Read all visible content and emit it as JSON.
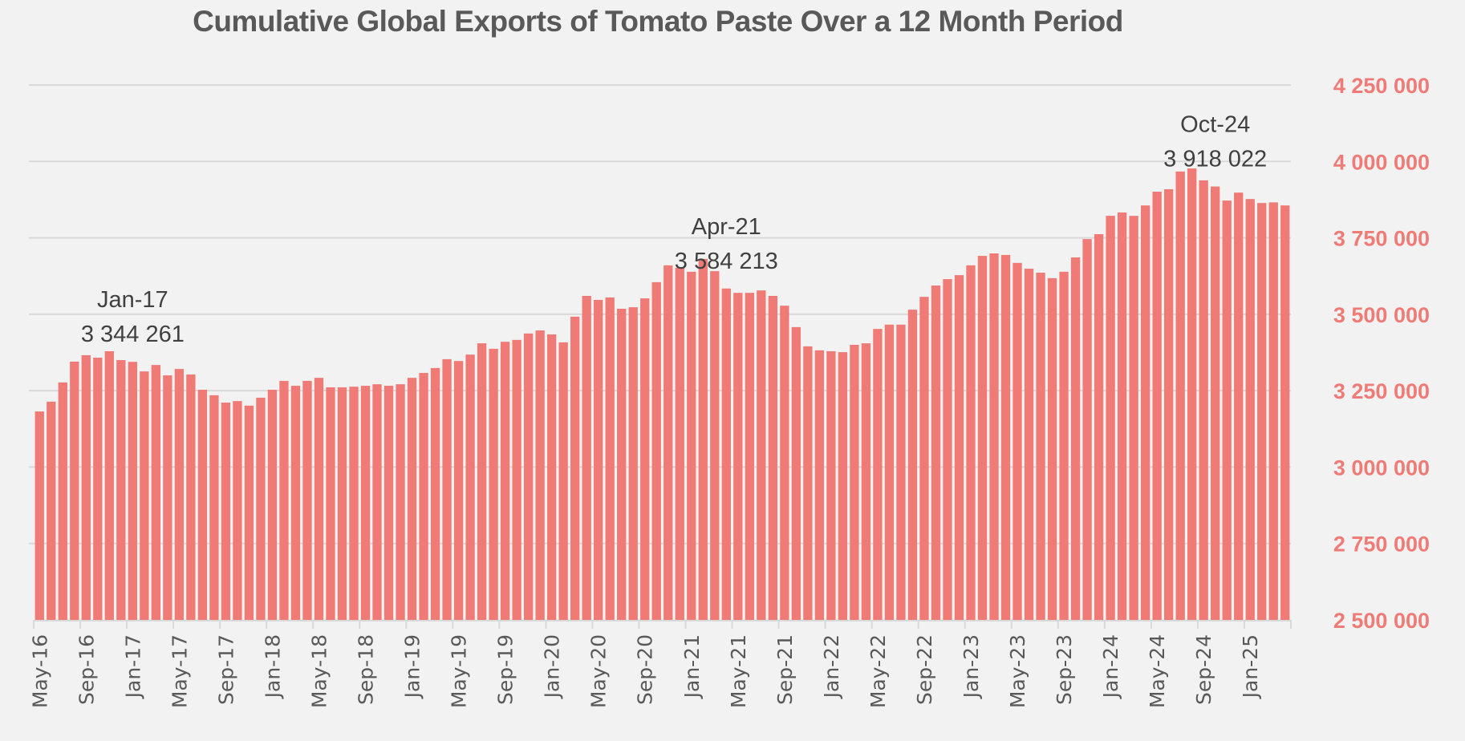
{
  "chart_data": {
    "type": "bar",
    "title": "Cumulative Global Exports of Tomato Paste Over a 12 Month Period",
    "xlabel": "",
    "ylabel": "",
    "ylim": [
      2500000,
      4250000
    ],
    "y_axis_side": "right",
    "y_ticks": [
      2500000,
      2750000,
      3000000,
      3250000,
      3500000,
      3750000,
      4000000,
      4250000
    ],
    "y_tick_labels": [
      "2 500 000",
      "2 750 000",
      "3 000 000",
      "3 250 000",
      "3 500 000",
      "3 750 000",
      "4 000 000",
      "4 250 000"
    ],
    "grid": true,
    "legend": "none",
    "bar_color": "#F07B76",
    "x_tick_labels": [
      "May-16",
      "Sep-16",
      "Jan-17",
      "May-17",
      "Sep-17",
      "Jan-18",
      "May-18",
      "Sep-18",
      "Jan-19",
      "May-19",
      "Sep-19",
      "Jan-20",
      "May-20",
      "Sep-20",
      "Jan-21",
      "May-21",
      "Sep-21",
      "Jan-22",
      "May-22",
      "Sep-22",
      "Jan-23",
      "May-23",
      "Sep-23",
      "Jan-24",
      "May-24",
      "Sep-24",
      "Jan-25"
    ],
    "categories": [
      "May-16",
      "Jun-16",
      "Jul-16",
      "Aug-16",
      "Sep-16",
      "Oct-16",
      "Nov-16",
      "Dec-16",
      "Jan-17",
      "Feb-17",
      "Mar-17",
      "Apr-17",
      "May-17",
      "Jun-17",
      "Jul-17",
      "Aug-17",
      "Sep-17",
      "Oct-17",
      "Nov-17",
      "Dec-17",
      "Jan-18",
      "Feb-18",
      "Mar-18",
      "Apr-18",
      "May-18",
      "Jun-18",
      "Jul-18",
      "Aug-18",
      "Sep-18",
      "Oct-18",
      "Nov-18",
      "Dec-18",
      "Jan-19",
      "Feb-19",
      "Mar-19",
      "Apr-19",
      "May-19",
      "Jun-19",
      "Jul-19",
      "Aug-19",
      "Sep-19",
      "Oct-19",
      "Nov-19",
      "Dec-19",
      "Jan-20",
      "Feb-20",
      "Mar-20",
      "Apr-20",
      "May-20",
      "Jun-20",
      "Jul-20",
      "Aug-20",
      "Sep-20",
      "Oct-20",
      "Nov-20",
      "Dec-20",
      "Jan-21",
      "Feb-21",
      "Mar-21",
      "Apr-21",
      "May-21",
      "Jun-21",
      "Jul-21",
      "Aug-21",
      "Sep-21",
      "Oct-21",
      "Nov-21",
      "Dec-21",
      "Jan-22",
      "Feb-22",
      "Mar-22",
      "Apr-22",
      "May-22",
      "Jun-22",
      "Jul-22",
      "Aug-22",
      "Sep-22",
      "Oct-22",
      "Nov-22",
      "Dec-22",
      "Jan-23",
      "Feb-23",
      "Mar-23",
      "Apr-23",
      "May-23",
      "Jun-23",
      "Jul-23",
      "Aug-23",
      "Sep-23",
      "Oct-23",
      "Nov-23",
      "Dec-23",
      "Jan-24",
      "Feb-24",
      "Mar-24",
      "Apr-24",
      "May-24",
      "Jun-24",
      "Jul-24",
      "Aug-24",
      "Sep-24",
      "Oct-24",
      "Nov-24",
      "Dec-24",
      "Jan-25",
      "Feb-25",
      "Mar-25",
      "Apr-25"
    ],
    "values": [
      3182000,
      3214000,
      3277000,
      3345000,
      3366000,
      3358000,
      3379000,
      3350000,
      3344261,
      3313000,
      3334000,
      3300000,
      3321000,
      3303000,
      3253000,
      3235000,
      3211000,
      3216000,
      3201000,
      3227000,
      3253000,
      3282000,
      3266000,
      3282000,
      3292000,
      3261000,
      3261000,
      3263000,
      3266000,
      3271000,
      3266000,
      3271000,
      3292000,
      3308000,
      3324000,
      3353000,
      3347000,
      3368000,
      3405000,
      3387000,
      3410000,
      3416000,
      3437000,
      3447000,
      3434000,
      3408000,
      3492000,
      3560000,
      3547000,
      3555000,
      3518000,
      3523000,
      3552000,
      3605000,
      3660000,
      3652000,
      3639000,
      3681000,
      3641000,
      3584213,
      3570000,
      3570000,
      3578000,
      3560000,
      3528000,
      3458000,
      3395000,
      3382000,
      3379000,
      3376000,
      3400000,
      3405000,
      3452000,
      3466000,
      3466000,
      3515000,
      3557000,
      3594000,
      3615000,
      3628000,
      3660000,
      3691000,
      3699000,
      3694000,
      3668000,
      3649000,
      3636000,
      3618000,
      3639000,
      3686000,
      3746000,
      3762000,
      3822000,
      3833000,
      3822000,
      3856000,
      3901000,
      3909000,
      3967000,
      3977000,
      3938000,
      3918022,
      3872000,
      3898000,
      3877000,
      3864000,
      3866000,
      3856000
    ],
    "annotations": [
      {
        "category": "Jan-17",
        "label": "Jan-17",
        "value_text": "3 344 261"
      },
      {
        "category": "Apr-21",
        "label": "Apr-21",
        "value_text": "3 584 213"
      },
      {
        "category": "Oct-24",
        "label": "Oct-24",
        "value_text": "3 918 022"
      }
    ]
  }
}
